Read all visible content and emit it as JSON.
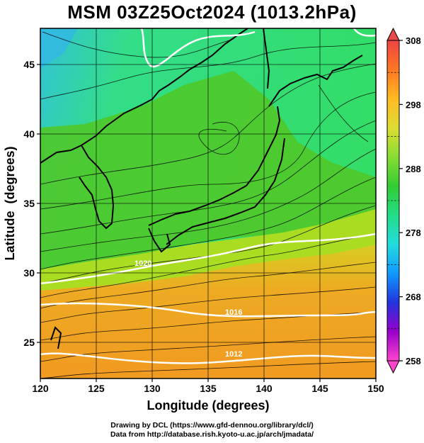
{
  "title": "MSM 03Z25Oct2024 (1013.2hPa)",
  "x_axis": {
    "label": "Longitude (degrees)",
    "ticks": [
      "120",
      "125",
      "130",
      "135",
      "140",
      "145",
      "150"
    ],
    "range": [
      120,
      150
    ]
  },
  "y_axis": {
    "label": "Latitude  (degrees)",
    "ticks": [
      "25",
      "30",
      "35",
      "40",
      "45"
    ],
    "range": [
      22.4,
      47.6
    ]
  },
  "colorbar": {
    "ticks": [
      "258",
      "268",
      "278",
      "288",
      "298",
      "308"
    ],
    "min": 258,
    "max": 308,
    "colors": [
      "#ff44cc",
      "#9900cc",
      "#2233dd",
      "#1199ff",
      "#22dddd",
      "#22dd88",
      "#33cc33",
      "#88dd33",
      "#dddd33",
      "#ffbb22",
      "#ff7722",
      "#ee4444"
    ]
  },
  "isobar_labels": [
    "1020",
    "1016",
    "1012"
  ],
  "credits": {
    "line1": "Drawing by DCL (https://www.gfd-dennou.org/library/dcl/)",
    "line2": "Data from http://database.rish.kyoto-u.ac.jp/arch/jmadata/"
  },
  "colors": {
    "sea_north": "#33dd77",
    "land_cool": "#55cc22",
    "sea_mid": "#99dd22",
    "sea_south": "#eeaa22",
    "isobar": "#ffffff",
    "coastline": "#000000"
  }
}
